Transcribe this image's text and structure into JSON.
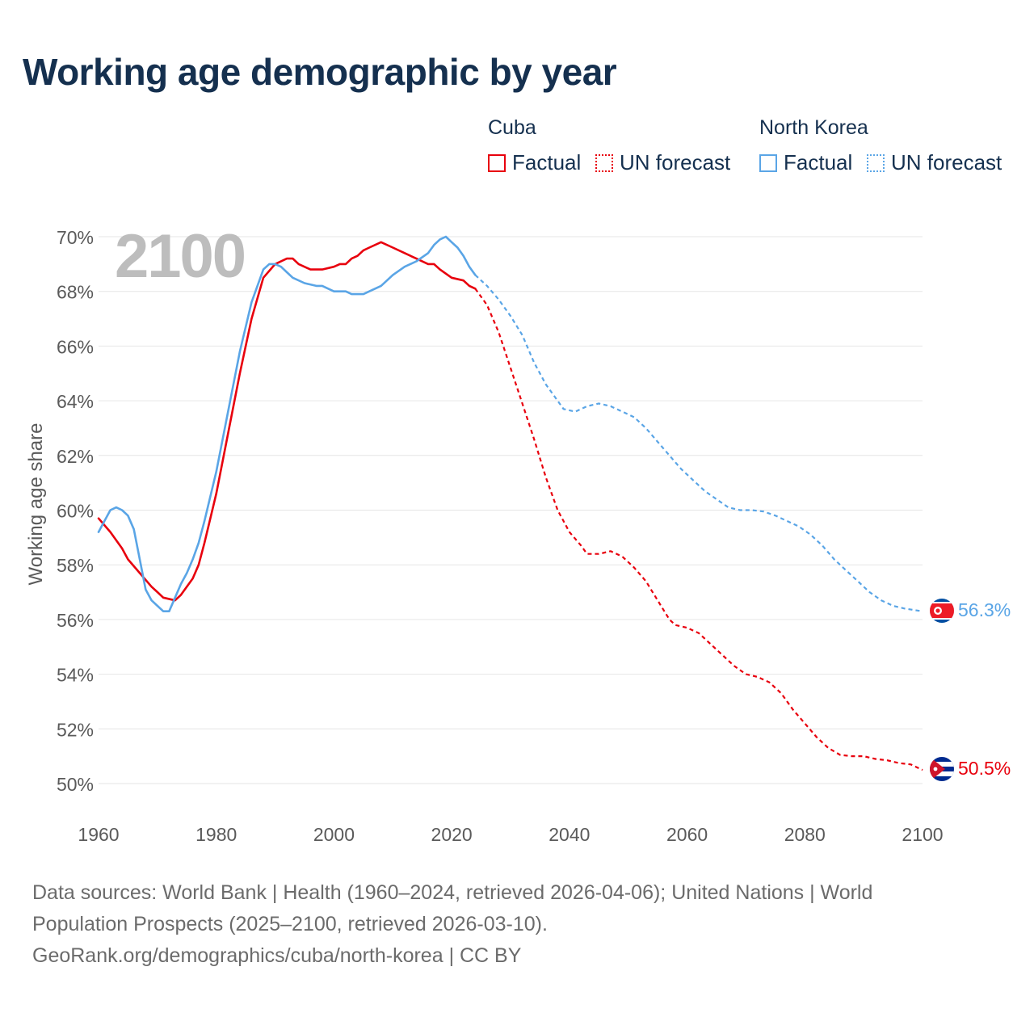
{
  "title": "Working age demographic by year",
  "legend": {
    "groups": [
      {
        "name": "Cuba",
        "color": "#e8000d",
        "items": [
          {
            "label": "Factual",
            "style": "solid"
          },
          {
            "label": "UN forecast",
            "style": "dotted"
          }
        ]
      },
      {
        "name": "North Korea",
        "color": "#5aa5e6",
        "items": [
          {
            "label": "Factual",
            "style": "solid"
          },
          {
            "label": "UN forecast",
            "style": "dotted"
          }
        ]
      }
    ]
  },
  "year_watermark": "2100",
  "source": {
    "line1": "Data sources: World Bank | Health (1960–2024, retrieved 2026-04-06); United Nations | World",
    "line2": "Population Prospects (2025–2100, retrieved 2026-03-10).",
    "line3": "GeoRank.org/demographics/cuba/north-korea | CC BY"
  },
  "colors": {
    "cuba": "#e8000d",
    "north_korea": "#5aa5e6",
    "title": "#15304f",
    "axis_text": "#5a5a5a",
    "grid": "#e6e6e6",
    "watermark": "#bdbdbd"
  },
  "chart_data": {
    "type": "line",
    "title": "Working age demographic by year",
    "xlabel": "",
    "ylabel": "Working age share",
    "xlim": [
      1960,
      2100
    ],
    "ylim": [
      49,
      70.3
    ],
    "x_ticks": [
      1960,
      1980,
      2000,
      2020,
      2040,
      2060,
      2080,
      2100
    ],
    "y_ticks": [
      50,
      52,
      54,
      56,
      58,
      60,
      62,
      64,
      66,
      68,
      70
    ],
    "y_tick_suffix": "%",
    "factual_range": [
      1960,
      2024
    ],
    "forecast_range": [
      2025,
      2100
    ],
    "series": [
      {
        "name": "Cuba",
        "key": "cuba",
        "end_label": "50.5%",
        "factual": [
          [
            1960,
            59.7
          ],
          [
            1962,
            59.2
          ],
          [
            1964,
            58.6
          ],
          [
            1965,
            58.2
          ],
          [
            1967,
            57.7
          ],
          [
            1969,
            57.2
          ],
          [
            1970,
            57.0
          ],
          [
            1971,
            56.8
          ],
          [
            1973,
            56.7
          ],
          [
            1974,
            56.9
          ],
          [
            1976,
            57.5
          ],
          [
            1977,
            58.0
          ],
          [
            1978,
            58.8
          ],
          [
            1980,
            60.6
          ],
          [
            1982,
            62.8
          ],
          [
            1984,
            65.0
          ],
          [
            1986,
            67.0
          ],
          [
            1988,
            68.5
          ],
          [
            1990,
            69.0
          ],
          [
            1992,
            69.2
          ],
          [
            1993,
            69.2
          ],
          [
            1994,
            69.0
          ],
          [
            1996,
            68.8
          ],
          [
            1998,
            68.8
          ],
          [
            2000,
            68.9
          ],
          [
            2001,
            69.0
          ],
          [
            2002,
            69.0
          ],
          [
            2003,
            69.2
          ],
          [
            2004,
            69.3
          ],
          [
            2005,
            69.5
          ],
          [
            2006,
            69.6
          ],
          [
            2008,
            69.8
          ],
          [
            2010,
            69.6
          ],
          [
            2012,
            69.4
          ],
          [
            2014,
            69.2
          ],
          [
            2016,
            69.0
          ],
          [
            2017,
            69.0
          ],
          [
            2018,
            68.8
          ],
          [
            2020,
            68.5
          ],
          [
            2022,
            68.4
          ],
          [
            2023,
            68.2
          ],
          [
            2024,
            68.1
          ]
        ],
        "forecast": [
          [
            2024,
            68.1
          ],
          [
            2026,
            67.5
          ],
          [
            2028,
            66.5
          ],
          [
            2030,
            65.2
          ],
          [
            2032,
            63.9
          ],
          [
            2034,
            62.6
          ],
          [
            2036,
            61.2
          ],
          [
            2038,
            60.0
          ],
          [
            2040,
            59.2
          ],
          [
            2042,
            58.7
          ],
          [
            2043,
            58.4
          ],
          [
            2045,
            58.4
          ],
          [
            2047,
            58.5
          ],
          [
            2049,
            58.3
          ],
          [
            2051,
            57.9
          ],
          [
            2053,
            57.4
          ],
          [
            2055,
            56.7
          ],
          [
            2057,
            56.0
          ],
          [
            2058,
            55.8
          ],
          [
            2060,
            55.7
          ],
          [
            2062,
            55.5
          ],
          [
            2064,
            55.1
          ],
          [
            2066,
            54.7
          ],
          [
            2068,
            54.3
          ],
          [
            2070,
            54.0
          ],
          [
            2072,
            53.9
          ],
          [
            2074,
            53.7
          ],
          [
            2076,
            53.3
          ],
          [
            2078,
            52.7
          ],
          [
            2080,
            52.2
          ],
          [
            2082,
            51.7
          ],
          [
            2084,
            51.3
          ],
          [
            2086,
            51.05
          ],
          [
            2088,
            51.0
          ],
          [
            2090,
            51.0
          ],
          [
            2092,
            50.9
          ],
          [
            2094,
            50.85
          ],
          [
            2096,
            50.75
          ],
          [
            2098,
            50.7
          ],
          [
            2100,
            50.5
          ]
        ]
      },
      {
        "name": "North Korea",
        "key": "north_korea",
        "end_label": "56.3%",
        "factual": [
          [
            1960,
            59.2
          ],
          [
            1961,
            59.6
          ],
          [
            1962,
            60.0
          ],
          [
            1963,
            60.1
          ],
          [
            1964,
            60.0
          ],
          [
            1965,
            59.8
          ],
          [
            1966,
            59.3
          ],
          [
            1967,
            58.2
          ],
          [
            1968,
            57.1
          ],
          [
            1969,
            56.7
          ],
          [
            1970,
            56.5
          ],
          [
            1971,
            56.3
          ],
          [
            1972,
            56.3
          ],
          [
            1973,
            56.8
          ],
          [
            1974,
            57.3
          ],
          [
            1975,
            57.7
          ],
          [
            1976,
            58.2
          ],
          [
            1977,
            58.8
          ],
          [
            1978,
            59.6
          ],
          [
            1980,
            61.4
          ],
          [
            1982,
            63.6
          ],
          [
            1984,
            65.8
          ],
          [
            1986,
            67.6
          ],
          [
            1988,
            68.8
          ],
          [
            1989,
            69.0
          ],
          [
            1990,
            69.0
          ],
          [
            1991,
            68.9
          ],
          [
            1992,
            68.7
          ],
          [
            1993,
            68.5
          ],
          [
            1995,
            68.3
          ],
          [
            1997,
            68.2
          ],
          [
            1998,
            68.2
          ],
          [
            2000,
            68.0
          ],
          [
            2002,
            68.0
          ],
          [
            2003,
            67.9
          ],
          [
            2005,
            67.9
          ],
          [
            2006,
            68.0
          ],
          [
            2008,
            68.2
          ],
          [
            2010,
            68.6
          ],
          [
            2012,
            68.9
          ],
          [
            2014,
            69.1
          ],
          [
            2016,
            69.4
          ],
          [
            2017,
            69.7
          ],
          [
            2018,
            69.9
          ],
          [
            2019,
            70.0
          ],
          [
            2020,
            69.8
          ],
          [
            2021,
            69.6
          ],
          [
            2022,
            69.3
          ],
          [
            2023,
            68.9
          ],
          [
            2024,
            68.6
          ]
        ],
        "forecast": [
          [
            2024,
            68.6
          ],
          [
            2026,
            68.2
          ],
          [
            2028,
            67.7
          ],
          [
            2030,
            67.1
          ],
          [
            2032,
            66.4
          ],
          [
            2034,
            65.4
          ],
          [
            2036,
            64.6
          ],
          [
            2038,
            64.0
          ],
          [
            2039,
            63.7
          ],
          [
            2041,
            63.6
          ],
          [
            2043,
            63.8
          ],
          [
            2045,
            63.9
          ],
          [
            2047,
            63.8
          ],
          [
            2049,
            63.6
          ],
          [
            2051,
            63.4
          ],
          [
            2053,
            63.0
          ],
          [
            2055,
            62.5
          ],
          [
            2057,
            62.0
          ],
          [
            2059,
            61.5
          ],
          [
            2061,
            61.1
          ],
          [
            2063,
            60.7
          ],
          [
            2065,
            60.4
          ],
          [
            2067,
            60.1
          ],
          [
            2069,
            60.0
          ],
          [
            2071,
            60.0
          ],
          [
            2073,
            59.95
          ],
          [
            2075,
            59.8
          ],
          [
            2077,
            59.6
          ],
          [
            2079,
            59.4
          ],
          [
            2081,
            59.1
          ],
          [
            2083,
            58.7
          ],
          [
            2085,
            58.2
          ],
          [
            2087,
            57.8
          ],
          [
            2089,
            57.4
          ],
          [
            2091,
            57.0
          ],
          [
            2093,
            56.7
          ],
          [
            2095,
            56.5
          ],
          [
            2097,
            56.4
          ],
          [
            2100,
            56.3
          ]
        ]
      }
    ]
  }
}
